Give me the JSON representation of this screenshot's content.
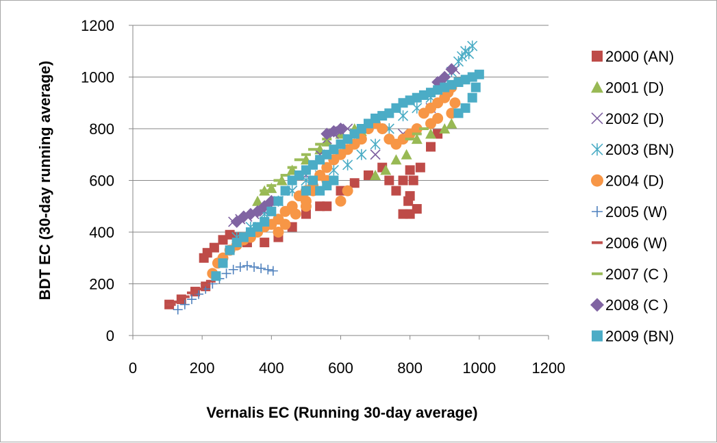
{
  "chart_data": {
    "type": "scatter",
    "title": "",
    "xlabel": "Vernalis EC (Running 30-day average)",
    "ylabel": "BDT EC (30-day running average)",
    "xlim": [
      0,
      1200
    ],
    "ylim": [
      0,
      1200
    ],
    "xticks": [
      "0",
      "200",
      "400",
      "600",
      "800",
      "1000",
      "1200"
    ],
    "yticks": [
      "0",
      "200",
      "400",
      "600",
      "800",
      "1000",
      "1200"
    ],
    "grid": "horizontal",
    "legend_position": "right",
    "series": [
      {
        "name": "2000 (AN)",
        "marker": "square",
        "color": "#be4b48",
        "points": [
          [
            105,
            120
          ],
          [
            140,
            140
          ],
          [
            180,
            170
          ],
          [
            210,
            190
          ],
          [
            205,
            300
          ],
          [
            215,
            320
          ],
          [
            235,
            340
          ],
          [
            260,
            370
          ],
          [
            280,
            390
          ],
          [
            300,
            380
          ],
          [
            330,
            360
          ],
          [
            380,
            360
          ],
          [
            420,
            380
          ],
          [
            460,
            420
          ],
          [
            500,
            470
          ],
          [
            540,
            500
          ],
          [
            560,
            500
          ],
          [
            600,
            560
          ],
          [
            640,
            590
          ],
          [
            680,
            620
          ],
          [
            720,
            650
          ],
          [
            740,
            600
          ],
          [
            760,
            560
          ],
          [
            780,
            600
          ],
          [
            800,
            640
          ],
          [
            810,
            600
          ],
          [
            795,
            520
          ],
          [
            780,
            470
          ],
          [
            800,
            470
          ],
          [
            820,
            490
          ],
          [
            800,
            540
          ],
          [
            830,
            650
          ],
          [
            860,
            730
          ],
          [
            880,
            780
          ]
        ]
      },
      {
        "name": "2001 (D)",
        "marker": "triangle",
        "color": "#98b954",
        "points": [
          [
            360,
            520
          ],
          [
            380,
            560
          ],
          [
            400,
            570
          ],
          [
            430,
            600
          ],
          [
            460,
            640
          ],
          [
            500,
            680
          ],
          [
            540,
            720
          ],
          [
            560,
            750
          ],
          [
            600,
            780
          ],
          [
            640,
            800
          ],
          [
            660,
            790
          ],
          [
            700,
            620
          ],
          [
            730,
            640
          ],
          [
            760,
            680
          ],
          [
            790,
            700
          ],
          [
            820,
            760
          ],
          [
            860,
            780
          ],
          [
            900,
            800
          ],
          [
            920,
            820
          ]
        ]
      },
      {
        "name": "2002 (D)",
        "marker": "x",
        "color": "#7d5fa0",
        "points": [
          [
            290,
            440
          ],
          [
            310,
            450
          ],
          [
            330,
            460
          ],
          [
            350,
            470
          ],
          [
            380,
            480
          ],
          [
            420,
            520
          ],
          [
            460,
            560
          ],
          [
            500,
            620
          ],
          [
            540,
            700
          ],
          [
            560,
            760
          ],
          [
            580,
            780
          ],
          [
            600,
            790
          ],
          [
            620,
            800
          ],
          [
            700,
            700
          ],
          [
            780,
            780
          ],
          [
            860,
            880
          ],
          [
            900,
            980
          ],
          [
            930,
            1030
          ]
        ]
      },
      {
        "name": "2003 (BN)",
        "marker": "asterisk",
        "color": "#4aacc5",
        "points": [
          [
            300,
            380
          ],
          [
            340,
            420
          ],
          [
            380,
            470
          ],
          [
            420,
            520
          ],
          [
            460,
            560
          ],
          [
            500,
            600
          ],
          [
            540,
            620
          ],
          [
            580,
            640
          ],
          [
            620,
            660
          ],
          [
            660,
            700
          ],
          [
            700,
            740
          ],
          [
            740,
            800
          ],
          [
            780,
            850
          ],
          [
            820,
            880
          ],
          [
            860,
            920
          ],
          [
            900,
            980
          ],
          [
            920,
            1020
          ],
          [
            940,
            1060
          ],
          [
            950,
            1080
          ],
          [
            960,
            1100
          ],
          [
            970,
            1090
          ],
          [
            980,
            1120
          ]
        ]
      },
      {
        "name": "2004 (D)",
        "marker": "circle",
        "color": "#f79646",
        "points": [
          [
            230,
            240
          ],
          [
            245,
            280
          ],
          [
            260,
            300
          ],
          [
            280,
            330
          ],
          [
            300,
            350
          ],
          [
            320,
            370
          ],
          [
            340,
            380
          ],
          [
            360,
            400
          ],
          [
            380,
            420
          ],
          [
            400,
            430
          ],
          [
            420,
            450
          ],
          [
            440,
            480
          ],
          [
            460,
            500
          ],
          [
            480,
            540
          ],
          [
            500,
            560
          ],
          [
            520,
            580
          ],
          [
            540,
            620
          ],
          [
            560,
            650
          ],
          [
            580,
            680
          ],
          [
            600,
            700
          ],
          [
            620,
            720
          ],
          [
            640,
            740
          ],
          [
            660,
            760
          ],
          [
            680,
            800
          ],
          [
            700,
            820
          ],
          [
            720,
            800
          ],
          [
            740,
            760
          ],
          [
            760,
            740
          ],
          [
            780,
            760
          ],
          [
            800,
            780
          ],
          [
            820,
            800
          ],
          [
            840,
            860
          ],
          [
            860,
            880
          ],
          [
            880,
            900
          ],
          [
            900,
            920
          ],
          [
            910,
            940
          ],
          [
            920,
            960
          ],
          [
            930,
            900
          ],
          [
            920,
            860
          ],
          [
            880,
            840
          ],
          [
            860,
            820
          ],
          [
            520,
            560
          ],
          [
            500,
            520
          ],
          [
            470,
            470
          ],
          [
            440,
            430
          ],
          [
            420,
            400
          ],
          [
            500,
            500
          ],
          [
            560,
            600
          ],
          [
            620,
            560
          ],
          [
            600,
            520
          ]
        ]
      },
      {
        "name": "2005 (W)",
        "marker": "plus",
        "color": "#4f81bd",
        "points": [
          [
            130,
            100
          ],
          [
            150,
            120
          ],
          [
            170,
            140
          ],
          [
            190,
            160
          ],
          [
            210,
            180
          ],
          [
            230,
            200
          ],
          [
            250,
            220
          ],
          [
            270,
            240
          ],
          [
            290,
            255
          ],
          [
            310,
            265
          ],
          [
            330,
            270
          ],
          [
            350,
            265
          ],
          [
            370,
            260
          ],
          [
            390,
            255
          ],
          [
            405,
            250
          ]
        ]
      },
      {
        "name": "2006 (W)",
        "marker": "dash",
        "color": "#c0504d",
        "points": [
          [
            110,
            120
          ],
          [
            130,
            130
          ],
          [
            150,
            150
          ],
          [
            170,
            165
          ],
          [
            190,
            180
          ],
          [
            210,
            195
          ],
          [
            225,
            210
          ]
        ]
      },
      {
        "name": "2007 (C )",
        "marker": "dash",
        "color": "#9bbb59",
        "points": [
          [
            380,
            560
          ],
          [
            400,
            580
          ],
          [
            420,
            600
          ],
          [
            440,
            620
          ],
          [
            460,
            650
          ],
          [
            480,
            680
          ],
          [
            500,
            700
          ],
          [
            520,
            720
          ],
          [
            540,
            740
          ],
          [
            560,
            760
          ],
          [
            800,
            760
          ],
          [
            820,
            780
          ],
          [
            840,
            800
          ]
        ]
      },
      {
        "name": "2008 (C )",
        "marker": "diamond",
        "color": "#8064a2",
        "points": [
          [
            300,
            440
          ],
          [
            320,
            460
          ],
          [
            340,
            470
          ],
          [
            360,
            480
          ],
          [
            380,
            500
          ],
          [
            400,
            520
          ],
          [
            560,
            780
          ],
          [
            580,
            790
          ],
          [
            600,
            800
          ],
          [
            880,
            980
          ],
          [
            900,
            1000
          ],
          [
            920,
            1030
          ]
        ]
      },
      {
        "name": "2009 (BN)",
        "marker": "square",
        "color": "#4bacc6",
        "points": [
          [
            240,
            230
          ],
          [
            260,
            280
          ],
          [
            280,
            330
          ],
          [
            300,
            360
          ],
          [
            320,
            380
          ],
          [
            340,
            400
          ],
          [
            360,
            420
          ],
          [
            380,
            440
          ],
          [
            400,
            480
          ],
          [
            420,
            520
          ],
          [
            440,
            560
          ],
          [
            460,
            600
          ],
          [
            480,
            620
          ],
          [
            500,
            640
          ],
          [
            520,
            660
          ],
          [
            540,
            680
          ],
          [
            560,
            700
          ],
          [
            580,
            720
          ],
          [
            600,
            740
          ],
          [
            620,
            760
          ],
          [
            640,
            780
          ],
          [
            660,
            800
          ],
          [
            680,
            820
          ],
          [
            700,
            840
          ],
          [
            720,
            850
          ],
          [
            740,
            860
          ],
          [
            760,
            880
          ],
          [
            780,
            900
          ],
          [
            800,
            910
          ],
          [
            820,
            920
          ],
          [
            840,
            930
          ],
          [
            860,
            940
          ],
          [
            880,
            950
          ],
          [
            900,
            960
          ],
          [
            920,
            970
          ],
          [
            940,
            980
          ],
          [
            960,
            990
          ],
          [
            980,
            1000
          ],
          [
            1000,
            1010
          ],
          [
            990,
            960
          ],
          [
            980,
            920
          ],
          [
            960,
            880
          ],
          [
            940,
            860
          ],
          [
            580,
            600
          ],
          [
            560,
            580
          ],
          [
            540,
            560
          ],
          [
            520,
            600
          ],
          [
            500,
            560
          ]
        ]
      }
    ]
  }
}
